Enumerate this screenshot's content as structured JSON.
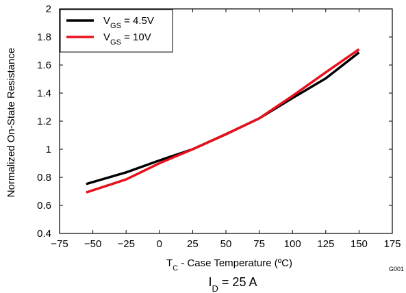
{
  "chart_data": {
    "type": "line",
    "xlabel": {
      "main": "T",
      "sub": "C",
      "rest": " - Case Temperature (ºC)"
    },
    "ylabel": "Normalized On-State Resistance",
    "xlim": [
      -75,
      175
    ],
    "ylim": [
      0.4,
      2.0
    ],
    "x_ticks": [
      -75,
      -50,
      -25,
      0,
      25,
      50,
      75,
      100,
      125,
      150,
      175
    ],
    "x_tick_labels": [
      "−75",
      "−50",
      "−25",
      "0",
      "25",
      "50",
      "75",
      "100",
      "125",
      "150",
      "175"
    ],
    "y_ticks": [
      0.4,
      0.6,
      0.8,
      1.0,
      1.2,
      1.4,
      1.6,
      1.8,
      2.0
    ],
    "y_tick_labels": [
      "0.4",
      "0.6",
      "0.8",
      "1",
      "1.2",
      "1.4",
      "1.6",
      "1.8",
      "2"
    ],
    "grid": false,
    "legend_position": "top-left",
    "series": [
      {
        "name": {
          "main": "V",
          "sub": "GS",
          "rest": " = 4.5V"
        },
        "color": "#000000",
        "x": [
          -55,
          -25,
          0,
          25,
          50,
          75,
          100,
          125,
          150
        ],
        "y": [
          0.752,
          0.835,
          0.92,
          1.0,
          1.107,
          1.22,
          1.365,
          1.505,
          1.69
        ]
      },
      {
        "name": {
          "main": "V",
          "sub": "GS",
          "rest": " = 10V"
        },
        "color": "#e8101c",
        "x": [
          -55,
          -25,
          0,
          25,
          50,
          75,
          100,
          125,
          150
        ],
        "y": [
          0.692,
          0.785,
          0.9,
          1.0,
          1.108,
          1.22,
          1.38,
          1.548,
          1.712
        ]
      }
    ],
    "condition": {
      "main": "I",
      "sub": "D",
      "rest": " = 25 A"
    },
    "figure_id": "G001"
  }
}
